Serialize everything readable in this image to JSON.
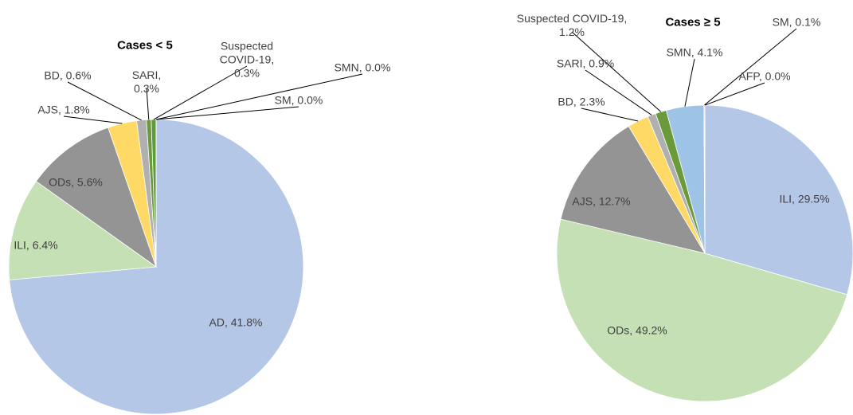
{
  "chart_data": [
    {
      "type": "pie",
      "title": "Cases < 5",
      "values": [
        41.8,
        6.4,
        5.6,
        1.8,
        0.6,
        0.3,
        0.3,
        0.0,
        0.0
      ],
      "value_labels": [
        "AD, 41.8%",
        "ILI, 6.4%",
        "ODs, 5.6%",
        "AJS, 1.8%",
        "BD, 0.6%",
        "SARI, 0.3%",
        "Suspected COVID-19, 0.3%",
        "SMN, 0.0%",
        "SM, 0.0%"
      ],
      "colors": [
        "#b4c7e7",
        "#c5e0b4",
        "#949494",
        "#ffd966",
        "#b0b0b0",
        "#6a9a3c",
        "#5e9a3a",
        "#9dc3e6",
        "#f4b183"
      ]
    },
    {
      "type": "pie",
      "title": "Cases ≥ 5",
      "values": [
        29.5,
        49.2,
        12.7,
        2.3,
        0.9,
        1.2,
        4.1,
        0.1,
        0.0
      ],
      "value_labels": [
        "ILI, 29.5%",
        "ODs, 49.2%",
        "AJS, 12.7%",
        "BD, 2.3%",
        "SARI, 0.9%",
        "Suspected COVID-19, 1.2%",
        "SMN, 4.1%",
        "SM, 0.1%",
        "AFP, 0.0%"
      ],
      "colors": [
        "#b4c7e7",
        "#c5e0b4",
        "#949494",
        "#ffd966",
        "#b0b0b0",
        "#6a9a3c",
        "#9dc3e6",
        "#f4b183",
        "#f4b183"
      ]
    }
  ]
}
